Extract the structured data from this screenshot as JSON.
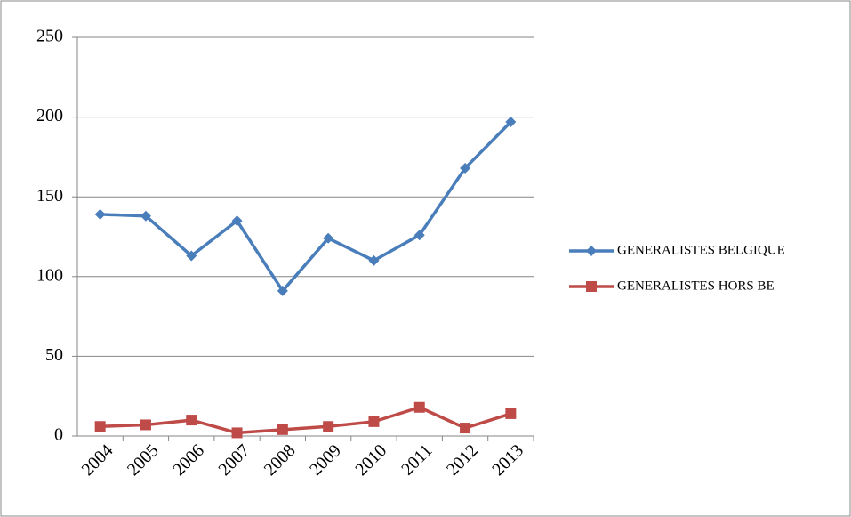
{
  "chart_data": {
    "type": "line",
    "categories": [
      "2004",
      "2005",
      "2006",
      "2007",
      "2008",
      "2009",
      "2010",
      "2011",
      "2012",
      "2013"
    ],
    "series": [
      {
        "name": "GENERALISTES BELGIQUE",
        "color": "#4a7ebb",
        "marker": "diamond",
        "values": [
          139,
          138,
          113,
          135,
          91,
          124,
          110,
          126,
          168,
          197
        ]
      },
      {
        "name": "GENERALISTES HORS BE",
        "color": "#be4b48",
        "marker": "square",
        "values": [
          6,
          7,
          10,
          2,
          4,
          6,
          9,
          18,
          5,
          14
        ]
      }
    ],
    "ylim": [
      0,
      250
    ],
    "yticks": [
      0,
      50,
      100,
      150,
      200,
      250
    ],
    "grid": true,
    "legend": "right"
  }
}
